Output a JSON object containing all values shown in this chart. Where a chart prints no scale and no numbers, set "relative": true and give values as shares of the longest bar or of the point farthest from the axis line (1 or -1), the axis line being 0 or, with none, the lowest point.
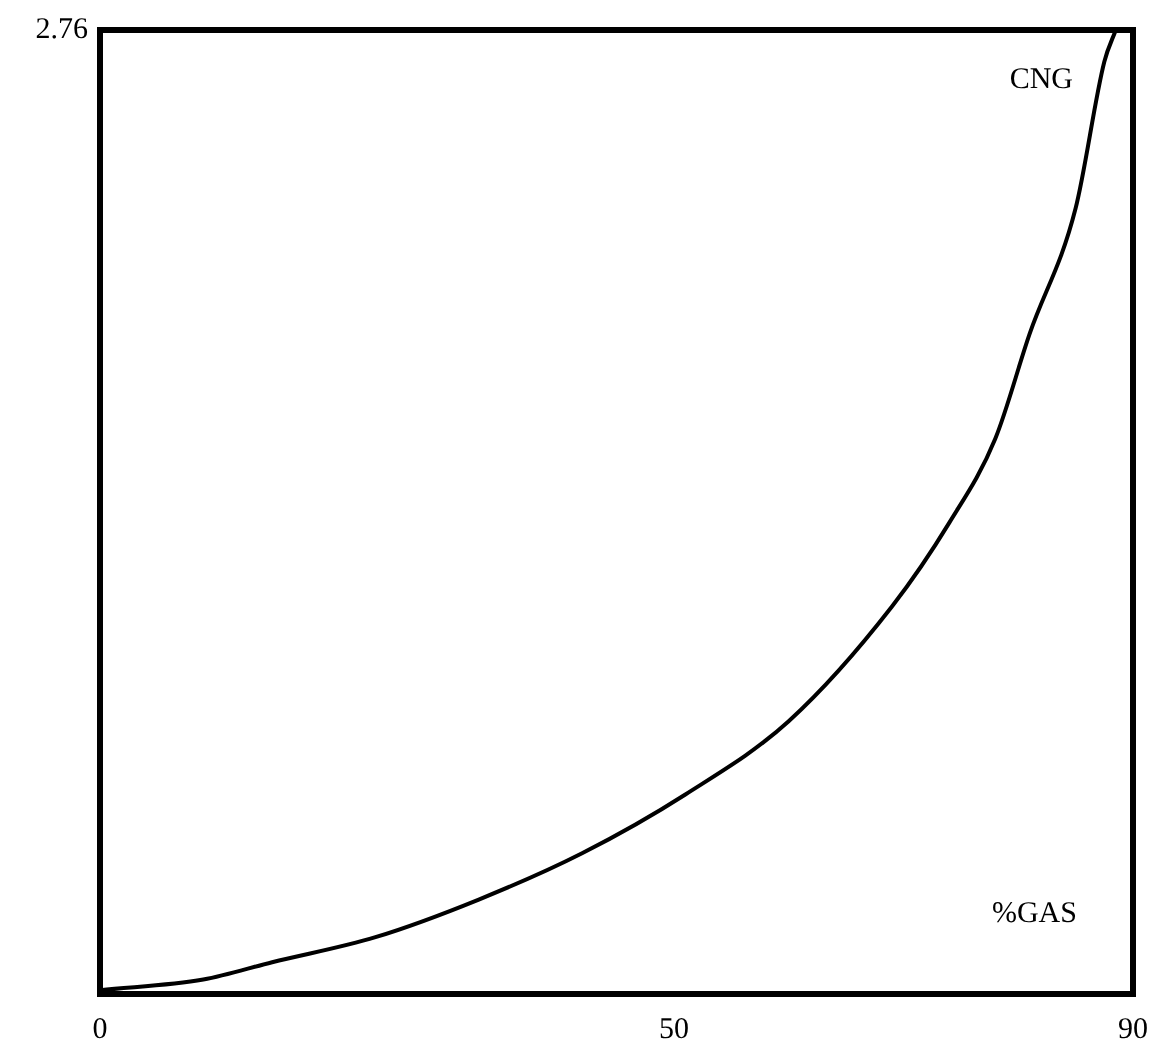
{
  "chart_data": {
    "type": "line",
    "relative": true,
    "x": [
      0,
      9,
      15,
      24,
      33,
      42,
      51,
      60,
      69,
      74,
      78,
      81,
      85,
      87.5,
      88.5
    ],
    "series": [
      {
        "color": "#000000",
        "values": [
          0.004,
          0.015,
          0.033,
          0.059,
          0.098,
          0.146,
          0.207,
          0.283,
          0.402,
          0.489,
          0.576,
          0.685,
          0.815,
          0.967,
          1
        ]
      }
    ],
    "xlim": [
      0,
      90
    ],
    "xticks": [
      0,
      50,
      90
    ],
    "annotations": [
      "2.76",
      "CNG",
      "%GAS"
    ],
    "grid": false,
    "legend": false,
    "marker": "none",
    "line_style": "solid"
  }
}
